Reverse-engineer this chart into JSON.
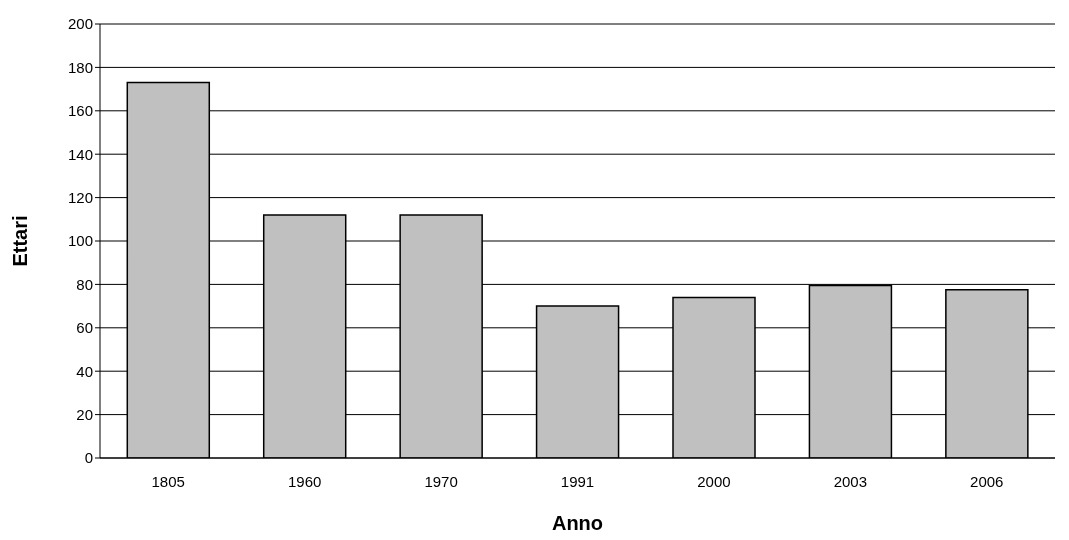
{
  "chart_data": {
    "type": "bar",
    "xlabel": "Anno",
    "ylabel": "Ettari",
    "categories": [
      "1805",
      "1960",
      "1970",
      "1991",
      "2000",
      "2003",
      "2006"
    ],
    "values": [
      173,
      112,
      112,
      70,
      74,
      79.5,
      77.5
    ],
    "color": "#c0c0c0",
    "ylim": [
      0,
      200
    ],
    "yticks": [
      0,
      20,
      40,
      60,
      80,
      100,
      120,
      140,
      160,
      180,
      200
    ],
    "grid": "y"
  }
}
